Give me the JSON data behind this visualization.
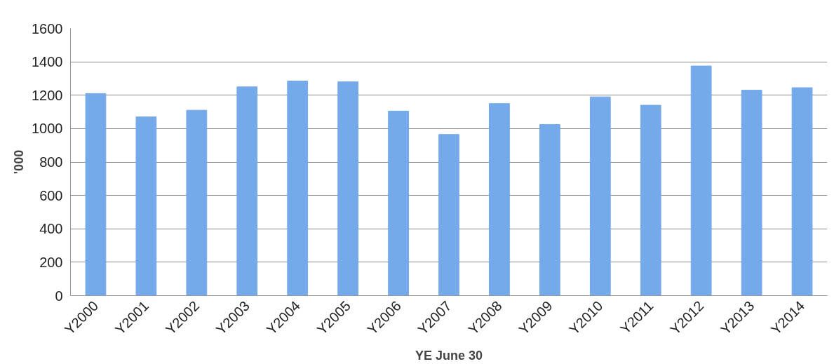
{
  "chart_data": {
    "type": "bar",
    "categories": [
      "Y2000",
      "Y2001",
      "Y2002",
      "Y2003",
      "Y2004",
      "Y2005",
      "Y2006",
      "Y2007",
      "Y2008",
      "Y2009",
      "Y2010",
      "Y2011",
      "Y2012",
      "Y2013",
      "Y2014"
    ],
    "values": [
      1210,
      1070,
      1110,
      1250,
      1285,
      1280,
      1105,
      965,
      1150,
      1025,
      1190,
      1140,
      1375,
      1230,
      1245
    ],
    "color": "#74aaea",
    "xlabel": "YE June 30",
    "ylabel": "'000",
    "ylim": [
      0,
      1600
    ],
    "yticks": [
      0,
      200,
      400,
      600,
      800,
      1000,
      1200,
      1400,
      1600
    ],
    "grid": "y"
  }
}
